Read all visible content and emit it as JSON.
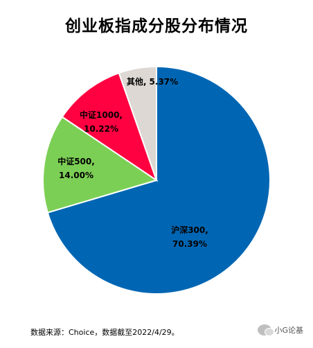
{
  "chart_data": {
    "type": "pie",
    "title": "创业板指成分股分布情况",
    "slices": [
      {
        "label": "沪深300",
        "value": 70.39,
        "value_text": "70.39%",
        "color": "#0066b3"
      },
      {
        "label": "中证500",
        "value": 14.0,
        "value_text": "14.00%",
        "color": "#7ccf55"
      },
      {
        "label": "中证1000",
        "value": 10.22,
        "value_text": "10.22%",
        "color": "#ff0040"
      },
      {
        "label": "其他",
        "value": 5.37,
        "value_text": "5.37%",
        "color": "#ddd8d3"
      }
    ],
    "start": "12 o'clock",
    "direction": "clockwise"
  },
  "footer": {
    "source": "数据来源：Choice，数据截至2022/4/29。"
  },
  "watermark": {
    "text": "小G论基",
    "icon": "wechat-icon"
  }
}
